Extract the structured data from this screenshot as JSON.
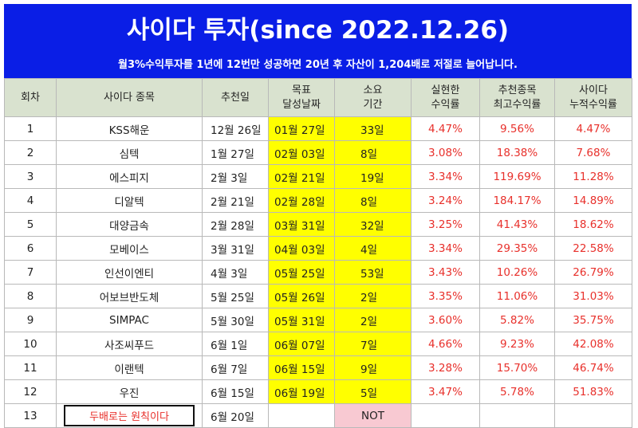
{
  "header": {
    "title": "사이다 투자(since 2022.12.26)",
    "subtitle": "월3%수익투자를 1년에 12번만 성공하면 20년 후 자산이 1,204배로 저절로 늘어납니다."
  },
  "columns": [
    [
      "회차"
    ],
    [
      "사이다 종목"
    ],
    [
      "추천일"
    ],
    [
      "목표",
      "달성날짜"
    ],
    [
      "소요",
      "기간"
    ],
    [
      "실현한",
      "수익률"
    ],
    [
      "추천종목",
      "최고수익률"
    ],
    [
      "사이다",
      "누적수익률"
    ]
  ],
  "rows": [
    {
      "round": "1",
      "stock": "KSS해운",
      "rec_date": "12월 26일",
      "target_date": "01월 27일",
      "duration": "33일",
      "realized": "4.47%",
      "max": "9.56%",
      "cum": "4.47%"
    },
    {
      "round": "2",
      "stock": "심텍",
      "rec_date": "1월 27일",
      "target_date": "02월 03일",
      "duration": "8일",
      "realized": "3.08%",
      "max": "18.38%",
      "cum": "7.68%"
    },
    {
      "round": "3",
      "stock": "에스피지",
      "rec_date": "2월 3일",
      "target_date": "02월 21일",
      "duration": "19일",
      "realized": "3.34%",
      "max": "119.69%",
      "cum": "11.28%"
    },
    {
      "round": "4",
      "stock": "디알텍",
      "rec_date": "2월 21일",
      "target_date": "02월 28일",
      "duration": "8일",
      "realized": "3.24%",
      "max": "184.17%",
      "cum": "14.89%"
    },
    {
      "round": "5",
      "stock": "대양금속",
      "rec_date": "2월 28일",
      "target_date": "03월 31일",
      "duration": "32일",
      "realized": "3.25%",
      "max": "41.43%",
      "cum": "18.62%"
    },
    {
      "round": "6",
      "stock": "모베이스",
      "rec_date": "3월 31일",
      "target_date": "04월 03일",
      "duration": "4일",
      "realized": "3.34%",
      "max": "29.35%",
      "cum": "22.58%"
    },
    {
      "round": "7",
      "stock": "인선이엔티",
      "rec_date": "4월 3일",
      "target_date": "05월 25일",
      "duration": "53일",
      "realized": "3.43%",
      "max": "10.26%",
      "cum": "26.79%"
    },
    {
      "round": "8",
      "stock": "어보브반도체",
      "rec_date": "5월 25일",
      "target_date": "05월 26일",
      "duration": "2일",
      "realized": "3.35%",
      "max": "11.06%",
      "cum": "31.03%"
    },
    {
      "round": "9",
      "stock": "SIMPAC",
      "rec_date": "5월 30일",
      "target_date": "05월 31일",
      "duration": "2일",
      "realized": "3.60%",
      "max": "5.82%",
      "cum": "35.75%"
    },
    {
      "round": "10",
      "stock": "사조씨푸드",
      "rec_date": "6월 1일",
      "target_date": "06월 07일",
      "duration": "7일",
      "realized": "4.66%",
      "max": "9.23%",
      "cum": "42.08%"
    },
    {
      "round": "11",
      "stock": "이랜텍",
      "rec_date": "6월 7일",
      "target_date": "06월 15일",
      "duration": "9일",
      "realized": "3.28%",
      "max": "15.70%",
      "cum": "46.74%"
    },
    {
      "round": "12",
      "stock": "우진",
      "rec_date": "6월 15일",
      "target_date": "06월 19일",
      "duration": "5일",
      "realized": "3.47%",
      "max": "5.78%",
      "cum": "51.83%"
    },
    {
      "round": "13",
      "stock": "두배로는 원칙이다",
      "rec_date": "6월 20일",
      "target_date": "",
      "duration": "NOT",
      "realized": "",
      "max": "",
      "cum": ""
    }
  ],
  "colors": {
    "banner": "#0a1ee6",
    "header_bg": "#d9e2cf",
    "highlight": "#ffff00",
    "not_bg": "#f8c9d2",
    "percent_text": "#e8302b"
  }
}
